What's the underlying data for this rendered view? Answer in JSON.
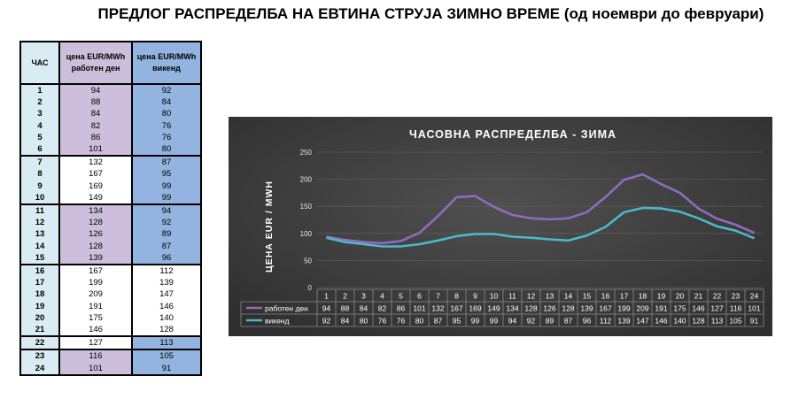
{
  "page_title": "ПРЕДЛОГ РАСПРЕДЕЛБА НА ЕВТИНА СТРУЈА ЗИМНО ВРЕМЕ (од ноември до февруари)",
  "table": {
    "headers": {
      "hour": "ЧАС",
      "weekday_l1": "цена EUR/MWh",
      "weekday_l2": "работен ден",
      "weekend_l1": "цена EUR/MWh",
      "weekend_l2": "викенд"
    },
    "rows": [
      {
        "hour": "1",
        "weekday": "94",
        "weekend": "92"
      },
      {
        "hour": "2",
        "weekday": "88",
        "weekend": "84"
      },
      {
        "hour": "3",
        "weekday": "84",
        "weekend": "80"
      },
      {
        "hour": "4",
        "weekday": "82",
        "weekend": "76"
      },
      {
        "hour": "5",
        "weekday": "86",
        "weekend": "76"
      },
      {
        "hour": "6",
        "weekday": "101",
        "weekend": "80"
      },
      {
        "hour": "7",
        "weekday": "132",
        "weekend": "87"
      },
      {
        "hour": "8",
        "weekday": "167",
        "weekend": "95"
      },
      {
        "hour": "9",
        "weekday": "169",
        "weekend": "99"
      },
      {
        "hour": "10",
        "weekday": "149",
        "weekend": "99"
      },
      {
        "hour": "11",
        "weekday": "134",
        "weekend": "94"
      },
      {
        "hour": "12",
        "weekday": "128",
        "weekend": "92"
      },
      {
        "hour": "13",
        "weekday": "126",
        "weekend": "89"
      },
      {
        "hour": "14",
        "weekday": "128",
        "weekend": "87"
      },
      {
        "hour": "15",
        "weekday": "139",
        "weekend": "96"
      },
      {
        "hour": "16",
        "weekday": "167",
        "weekend": "112"
      },
      {
        "hour": "17",
        "weekday": "199",
        "weekend": "139"
      },
      {
        "hour": "18",
        "weekday": "209",
        "weekend": "147"
      },
      {
        "hour": "19",
        "weekday": "191",
        "weekend": "146"
      },
      {
        "hour": "20",
        "weekday": "175",
        "weekend": "140"
      },
      {
        "hour": "21",
        "weekday": "146",
        "weekend": "128"
      },
      {
        "hour": "22",
        "weekday": "127",
        "weekend": "113"
      },
      {
        "hour": "23",
        "weekday": "116",
        "weekend": "105"
      },
      {
        "hour": "24",
        "weekday": "101",
        "weekend": "91"
      }
    ],
    "colors": {
      "purple": "#cdbfdc",
      "blue": "#93b4e0",
      "hour": "#d9ecf3",
      "white": "#ffffff"
    }
  },
  "chart_data": {
    "type": "line",
    "title": "ЧАСОВНА РАСПРЕДЕЛБА  - ЗИМА",
    "xlabel": "",
    "ylabel": "ЦЕНА EUR / MWH",
    "categories": [
      "1",
      "2",
      "3",
      "4",
      "5",
      "6",
      "7",
      "8",
      "9",
      "10",
      "11",
      "12",
      "13",
      "14",
      "15",
      "16",
      "17",
      "18",
      "19",
      "20",
      "21",
      "22",
      "23",
      "24"
    ],
    "ylim": [
      0,
      250
    ],
    "yticks": [
      0,
      50,
      100,
      150,
      200,
      250
    ],
    "legend": "data-table",
    "grid": true,
    "series": [
      {
        "name": "работен ден",
        "color": "#8e6bbf",
        "values": [
          94,
          88,
          84,
          82,
          86,
          101,
          132,
          167,
          169,
          149,
          134,
          128,
          126,
          128,
          139,
          167,
          199,
          209,
          191,
          175,
          146,
          127,
          116,
          101
        ]
      },
      {
        "name": "викенд",
        "color": "#4bb8cc",
        "values": [
          92,
          84,
          80,
          76,
          76,
          80,
          87,
          95,
          99,
          99,
          94,
          92,
          89,
          87,
          96,
          112,
          139,
          147,
          146,
          140,
          128,
          113,
          105,
          91
        ]
      }
    ],
    "colors": {
      "background": "#3d3d3d",
      "text": "#ffffff",
      "grid": "#5a5a5a"
    }
  }
}
